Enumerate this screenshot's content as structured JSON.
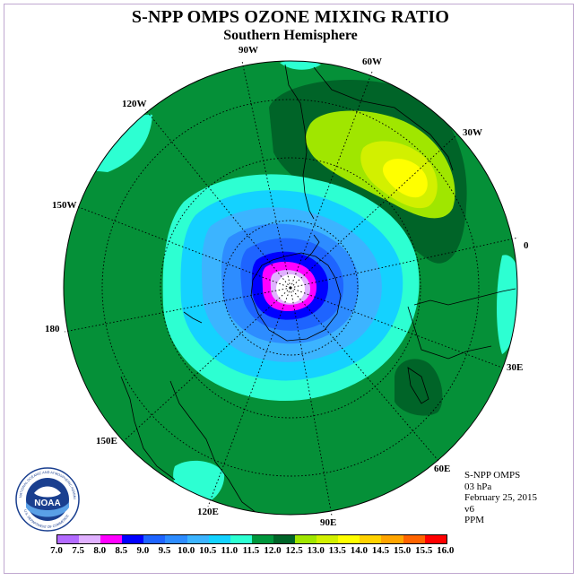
{
  "title": "S-NPP OMPS OZONE MIXING RATIO",
  "subtitle": "Southern Hemisphere",
  "longitude_labels": [
    "90W",
    "60W",
    "30W",
    "0",
    "30E",
    "60E",
    "90E",
    "120E",
    "150E",
    "180",
    "150W",
    "120W"
  ],
  "info": {
    "instrument": "S-NPP OMPS",
    "level": "03 hPa",
    "date": "February 25, 2015",
    "version": "v6",
    "units": "PPM"
  },
  "logo": {
    "text": "NOAA",
    "ring_text": "NATIONAL OCEANIC AND ATMOSPHERIC ADMINISTRATION",
    "ring_text_bottom": "U.S. DEPARTMENT OF COMMERCE"
  },
  "colorbar": {
    "ticks": [
      "7.0",
      "7.5",
      "8.0",
      "8.5",
      "9.0",
      "9.5",
      "10.0",
      "10.5",
      "11.0",
      "11.5",
      "12.0",
      "12.5",
      "13.0",
      "13.5",
      "14.0",
      "14.5",
      "15.0",
      "15.5",
      "16.0"
    ],
    "colors": [
      "#b36bff",
      "#e0b0ff",
      "#ff00ff",
      "#0000ff",
      "#1e64ff",
      "#2d8cff",
      "#3cb4ff",
      "#14d2ff",
      "#2dffd2",
      "#00963c",
      "#006428",
      "#a0e600",
      "#d2f000",
      "#ffff00",
      "#ffd200",
      "#ffa500",
      "#ff6400",
      "#ff0000",
      "#9b5a3c"
    ]
  },
  "colors": {
    "base_field": "#059038",
    "dark_green": "#006428",
    "cyan": "#2dffd2",
    "light_blue": "#14d2ff",
    "mid_blue": "#3cb4ff",
    "blue": "#2d8cff",
    "deep_blue": "#1e64ff",
    "navy": "#0000ff",
    "magenta": "#ff00ff",
    "lilac": "#e0b0ff",
    "lime": "#a0e600",
    "yellow_green": "#d2f000",
    "yellow": "#ffff00"
  }
}
